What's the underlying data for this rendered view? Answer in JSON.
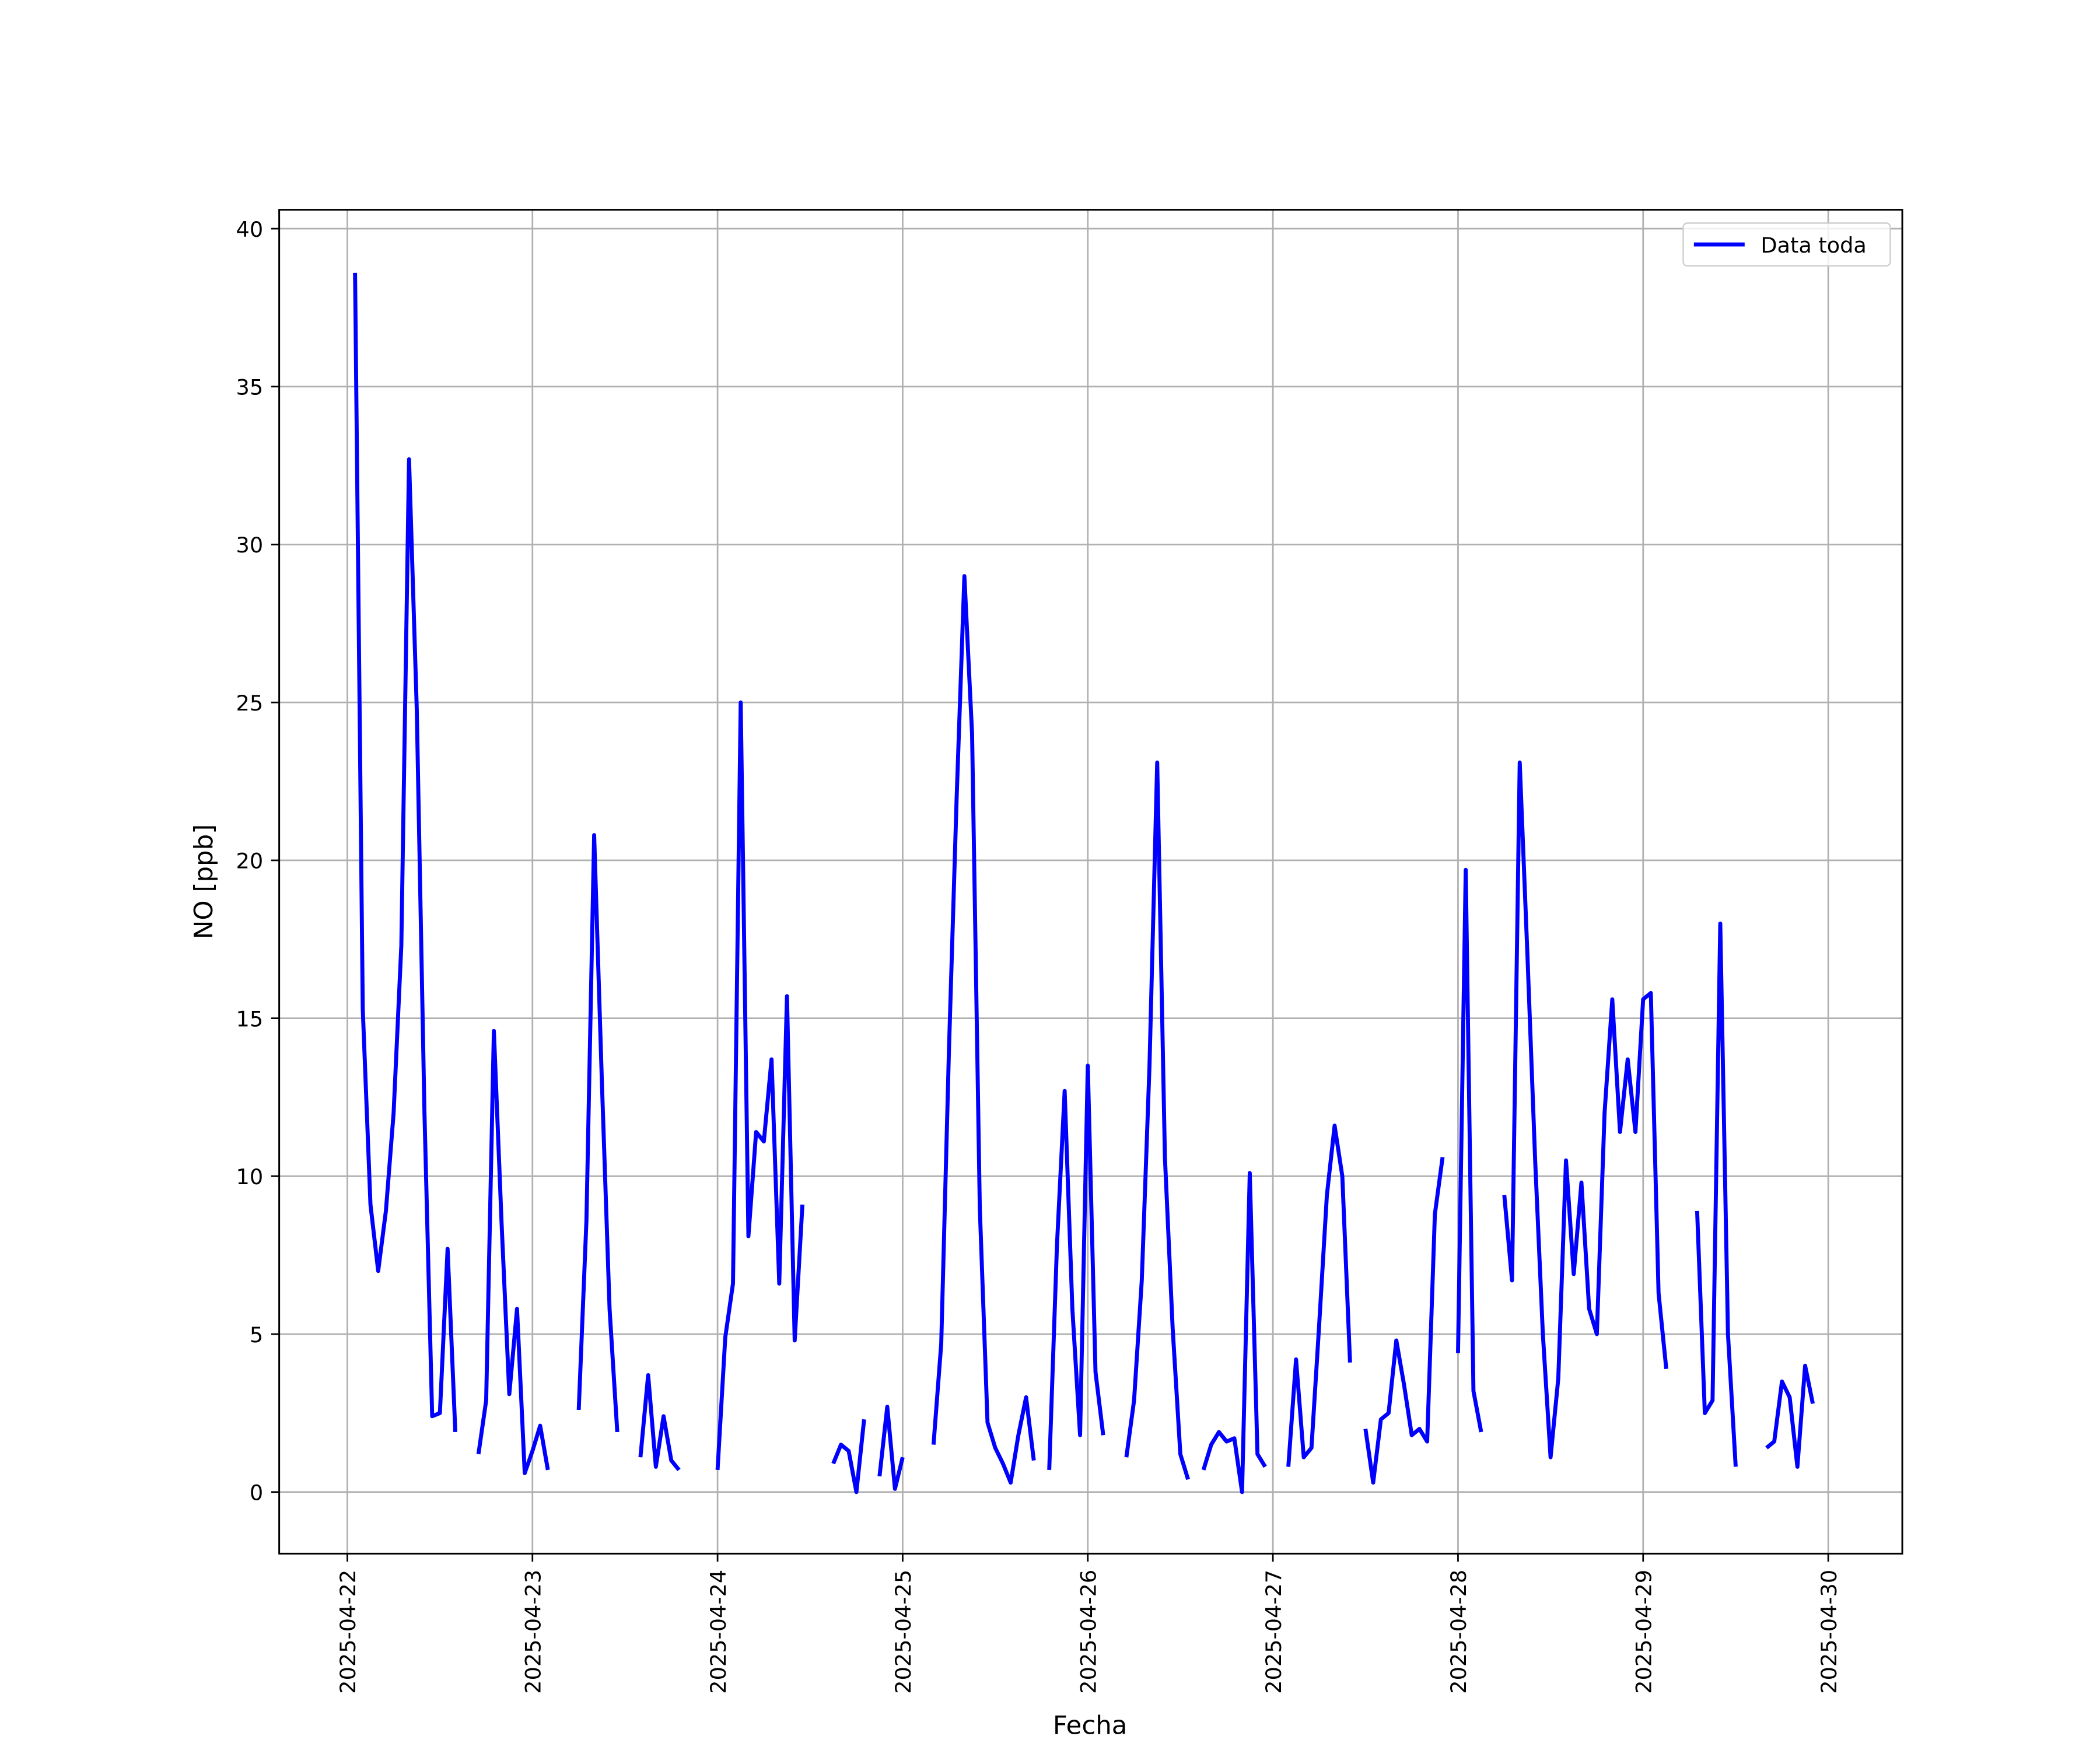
{
  "chart_data": {
    "type": "line",
    "x_label": "Fecha",
    "y_label": "NO [ppb]",
    "x": [
      "2025-04-22 01:00",
      "2025-04-22 02:00",
      "2025-04-22 03:00",
      "2025-04-22 04:00",
      "2025-04-22 05:00",
      "2025-04-22 06:00",
      "2025-04-22 07:00",
      "2025-04-22 08:00",
      "2025-04-22 09:00",
      "2025-04-22 10:00",
      "2025-04-22 11:00",
      "2025-04-22 12:00",
      "2025-04-22 13:00",
      "2025-04-22 14:00",
      "2025-04-22 15:00",
      "2025-04-22 17:00",
      "2025-04-22 18:00",
      "2025-04-22 19:00",
      "2025-04-22 20:00",
      "2025-04-22 21:00",
      "2025-04-22 22:00",
      "2025-04-22 23:00",
      "2025-04-23 00:00",
      "2025-04-23 01:00",
      "2025-04-23 02:00",
      "2025-04-23 03:00",
      "2025-04-23 06:00",
      "2025-04-23 07:00",
      "2025-04-23 08:00",
      "2025-04-23 09:00",
      "2025-04-23 10:00",
      "2025-04-23 11:00",
      "2025-04-23 12:00",
      "2025-04-23 14:00",
      "2025-04-23 15:00",
      "2025-04-23 16:00",
      "2025-04-23 17:00",
      "2025-04-23 18:00",
      "2025-04-23 19:00",
      "2025-04-23 20:00",
      "2025-04-24 00:00",
      "2025-04-24 01:00",
      "2025-04-24 02:00",
      "2025-04-24 03:00",
      "2025-04-24 04:00",
      "2025-04-24 05:00",
      "2025-04-24 06:00",
      "2025-04-24 07:00",
      "2025-04-24 08:00",
      "2025-04-24 09:00",
      "2025-04-24 10:00",
      "2025-04-24 11:00",
      "2025-04-24 12:00",
      "2025-04-24 15:00",
      "2025-04-24 16:00",
      "2025-04-24 17:00",
      "2025-04-24 18:00",
      "2025-04-24 19:00",
      "2025-04-24 20:00",
      "2025-04-24 21:00",
      "2025-04-24 22:00",
      "2025-04-24 23:00",
      "2025-04-25 00:00",
      "2025-04-25 01:00",
      "2025-04-25 04:00",
      "2025-04-25 05:00",
      "2025-04-25 06:00",
      "2025-04-25 07:00",
      "2025-04-25 08:00",
      "2025-04-25 09:00",
      "2025-04-25 10:00",
      "2025-04-25 11:00",
      "2025-04-25 12:00",
      "2025-04-25 13:00",
      "2025-04-25 14:00",
      "2025-04-25 15:00",
      "2025-04-25 16:00",
      "2025-04-25 17:00",
      "2025-04-25 18:00",
      "2025-04-25 19:00",
      "2025-04-25 20:00",
      "2025-04-25 21:00",
      "2025-04-25 22:00",
      "2025-04-25 23:00",
      "2025-04-26 00:00",
      "2025-04-26 01:00",
      "2025-04-26 02:00",
      "2025-04-26 03:00",
      "2025-04-26 05:00",
      "2025-04-26 06:00",
      "2025-04-26 07:00",
      "2025-04-26 08:00",
      "2025-04-26 09:00",
      "2025-04-26 10:00",
      "2025-04-26 11:00",
      "2025-04-26 12:00",
      "2025-04-26 13:00",
      "2025-04-26 14:00",
      "2025-04-26 15:00",
      "2025-04-26 16:00",
      "2025-04-26 17:00",
      "2025-04-26 18:00",
      "2025-04-26 19:00",
      "2025-04-26 20:00",
      "2025-04-26 21:00",
      "2025-04-26 22:00",
      "2025-04-26 23:00",
      "2025-04-27 00:00",
      "2025-04-27 02:00",
      "2025-04-27 03:00",
      "2025-04-27 04:00",
      "2025-04-27 05:00",
      "2025-04-27 06:00",
      "2025-04-27 07:00",
      "2025-04-27 08:00",
      "2025-04-27 09:00",
      "2025-04-27 10:00",
      "2025-04-27 11:00",
      "2025-04-27 12:00",
      "2025-04-27 13:00",
      "2025-04-27 14:00",
      "2025-04-27 15:00",
      "2025-04-27 16:00",
      "2025-04-27 17:00",
      "2025-04-27 18:00",
      "2025-04-27 19:00",
      "2025-04-27 20:00",
      "2025-04-27 21:00",
      "2025-04-27 22:00",
      "2025-04-27 23:00",
      "2025-04-28 00:00",
      "2025-04-28 01:00",
      "2025-04-28 02:00",
      "2025-04-28 03:00",
      "2025-04-28 04:00",
      "2025-04-28 06:00",
      "2025-04-28 07:00",
      "2025-04-28 08:00",
      "2025-04-28 09:00",
      "2025-04-28 10:00",
      "2025-04-28 11:00",
      "2025-04-28 12:00",
      "2025-04-28 13:00",
      "2025-04-28 14:00",
      "2025-04-28 15:00",
      "2025-04-28 16:00",
      "2025-04-28 17:00",
      "2025-04-28 18:00",
      "2025-04-28 19:00",
      "2025-04-28 20:00",
      "2025-04-28 21:00",
      "2025-04-28 22:00",
      "2025-04-28 23:00",
      "2025-04-29 00:00",
      "2025-04-29 01:00",
      "2025-04-29 02:00",
      "2025-04-29 03:00",
      "2025-04-29 04:00",
      "2025-04-29 07:00",
      "2025-04-29 08:00",
      "2025-04-29 09:00",
      "2025-04-29 10:00",
      "2025-04-29 11:00",
      "2025-04-29 12:00",
      "2025-04-29 13:00",
      "2025-04-29 16:00",
      "2025-04-29 17:00",
      "2025-04-29 18:00",
      "2025-04-29 19:00",
      "2025-04-29 20:00",
      "2025-04-29 21:00",
      "2025-04-29 22:00"
    ],
    "series": [
      {
        "name": "Data toda",
        "color": "#0000ff",
        "values": [
          38.6,
          15.3,
          9.1,
          7.0,
          8.9,
          12,
          17.3,
          32.7,
          24.8,
          12,
          2.4,
          2.5,
          7.7,
          1.9,
          null,
          1.2,
          2.9,
          14.6,
          8.5,
          3.1,
          5.8,
          0.6,
          1.3,
          2.1,
          0.7,
          null,
          2.6,
          8.6,
          20.8,
          13,
          5.8,
          1.9,
          null,
          1.1,
          3.7,
          0.8,
          2.4,
          1.0,
          0.7,
          null,
          0.7,
          4.9,
          6.6,
          25,
          8.1,
          11.4,
          11.1,
          13.7,
          6.6,
          15.7,
          4.8,
          9.1,
          null,
          0.9,
          1.5,
          1.3,
          0.0,
          2.3,
          null,
          0.5,
          2.7,
          0.1,
          1.1,
          null,
          1.5,
          4.7,
          14,
          22,
          29,
          24,
          9,
          2.2,
          1.4,
          0.9,
          0.3,
          1.8,
          3.0,
          1.0,
          null,
          0.7,
          7.8,
          12.7,
          5.8,
          1.8,
          13.5,
          3.8,
          1.8,
          null,
          1.1,
          2.9,
          6.7,
          13.5,
          23.1,
          10.6,
          5.2,
          1.2,
          0.4,
          null,
          0.7,
          1.5,
          1.9,
          1.6,
          1.7,
          0.0,
          10.1,
          1.2,
          0.8,
          null,
          0.8,
          4.2,
          1.1,
          1.4,
          5.3,
          9.4,
          11.6,
          10,
          4.1,
          null,
          2.0,
          0.3,
          2.3,
          2.5,
          4.8,
          3.4,
          1.8,
          2.0,
          1.6,
          8.8,
          10.6,
          null,
          4.4,
          19.7,
          3.2,
          1.9,
          null,
          9.4,
          6.7,
          23.1,
          17,
          10.5,
          5,
          1.1,
          3.6,
          10.5,
          6.9,
          9.8,
          5.8,
          5.0,
          12,
          15.6,
          11.4,
          13.7,
          11.4,
          15.6,
          15.8,
          6.3,
          3.9,
          null,
          8.9,
          2.5,
          2.9,
          18,
          5,
          0.8,
          null,
          1.4,
          1.6,
          3.5,
          3.0,
          0.8,
          4.0,
          2.8
        ]
      }
    ],
    "xlim": [
      "2025-04-21 15:10",
      "2025-04-30 09:36"
    ],
    "xticks": [
      "2025-04-22",
      "2025-04-23",
      "2025-04-24",
      "2025-04-25",
      "2025-04-26",
      "2025-04-27",
      "2025-04-28",
      "2025-04-29",
      "2025-04-30"
    ],
    "ylim": [
      -1.95,
      40.6
    ],
    "yticks": [
      0,
      5,
      10,
      15,
      20,
      25,
      30,
      35,
      40
    ],
    "grid": true,
    "legend": "upper right"
  }
}
